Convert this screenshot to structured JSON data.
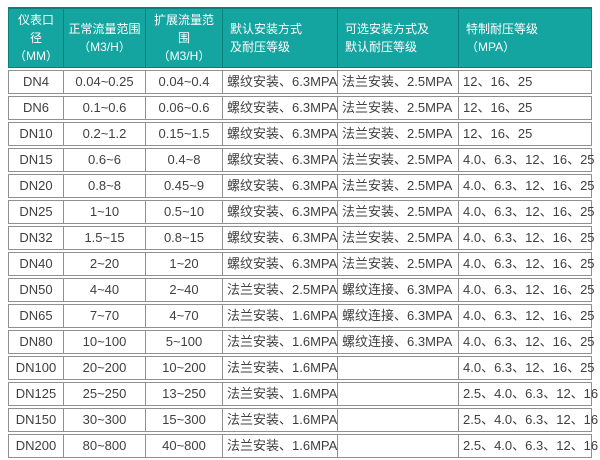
{
  "colors": {
    "header_bg": "#14a5a1",
    "header_border": "#0c7f7c",
    "row_border": "#909090",
    "body_text": "#3f3f3f",
    "header_text": "#ffffff"
  },
  "table": {
    "header": [
      {
        "line1": "仪表口径",
        "line2": "（MM）"
      },
      {
        "line1": "正常流量范围",
        "line2": "（M3/H）"
      },
      {
        "line1": "扩展流量范围",
        "line2": "（M3/H）"
      },
      {
        "line1": "默认安装方式",
        "line2": "及耐压等级"
      },
      {
        "line1": "可选安装方式及",
        "line2": "默认耐压等级"
      },
      {
        "line1": "特制耐压等级",
        "line2": "（MPA）"
      }
    ]
  },
  "chart_data": {
    "type": "table",
    "columns": [
      "仪表口径（MM）",
      "正常流量范围（M3/H）",
      "扩展流量范围（M3/H）",
      "默认安装方式及耐压等级",
      "可选安装方式及默认耐压等级",
      "特制耐压等级（MPA）"
    ],
    "rows": [
      [
        "DN4",
        "0.04~0.25",
        "0.04~0.4",
        "螺纹安装、6.3MPA",
        "法兰安装、2.5MPA",
        "12、16、25"
      ],
      [
        "DN6",
        "0.1~0.6",
        "0.06~0.6",
        "螺纹安装、6.3MPA",
        "法兰安装、2.5MPA",
        "12、16、25"
      ],
      [
        "DN10",
        "0.2~1.2",
        "0.15~1.5",
        "螺纹安装、6.3MPA",
        "法兰安装、2.5MPA",
        "12、16、25"
      ],
      [
        "DN15",
        "0.6~6",
        "0.4~8",
        "螺纹安装、6.3MPA",
        "法兰安装、2.5MPA",
        "4.0、6.3、12、16、25"
      ],
      [
        "DN20",
        "0.8~8",
        "0.45~9",
        "螺纹安装、6.3MPA",
        "法兰安装、2.5MPA",
        "4.0、6.3、12、16、25"
      ],
      [
        "DN25",
        "1~10",
        "0.5~10",
        "螺纹安装、6.3MPA",
        "法兰安装、2.5MPA",
        "4.0、6.3、12、16、25"
      ],
      [
        "DN32",
        "1.5~15",
        "0.8~15",
        "螺纹安装、6.3MPA",
        "法兰安装、2.5MPA",
        "4.0、6.3、12、16、25"
      ],
      [
        "DN40",
        "2~20",
        "1~20",
        "螺纹安装、6.3MPA",
        "法兰安装、2.5MPA",
        "4.0、6.3、12、16、25"
      ],
      [
        "DN50",
        "4~40",
        "2~40",
        "法兰安装、2.5MPA",
        "螺纹连接、6.3MPA",
        "4.0、6.3、12、16、25"
      ],
      [
        "DN65",
        "7~70",
        "4~70",
        "法兰安装、1.6MPA",
        "螺纹连接、6.3MPA",
        "4.0、6.3、12、16、25"
      ],
      [
        "DN80",
        "10~100",
        "5~100",
        "法兰安装、1.6MPA",
        "螺纹连接、6.3MPA",
        "4.0、6.3、12、16、25"
      ],
      [
        "DN100",
        "20~200",
        "10~200",
        "法兰安装、1.6MPA",
        "",
        "4.0、6.3、12、16、25"
      ],
      [
        "DN125",
        "25~250",
        "13~250",
        "法兰安装、1.6MPA",
        "",
        "2.5、4.0、6.3、12、16"
      ],
      [
        "DN150",
        "30~300",
        "15~300",
        "法兰安装、1.6MPA",
        "",
        "2.5、4.0、6.3、12、16"
      ],
      [
        "DN200",
        "80~800",
        "40~800",
        "法兰安装、1.6MPA",
        "",
        "2.5、4.0、6.3、12、16"
      ]
    ]
  }
}
